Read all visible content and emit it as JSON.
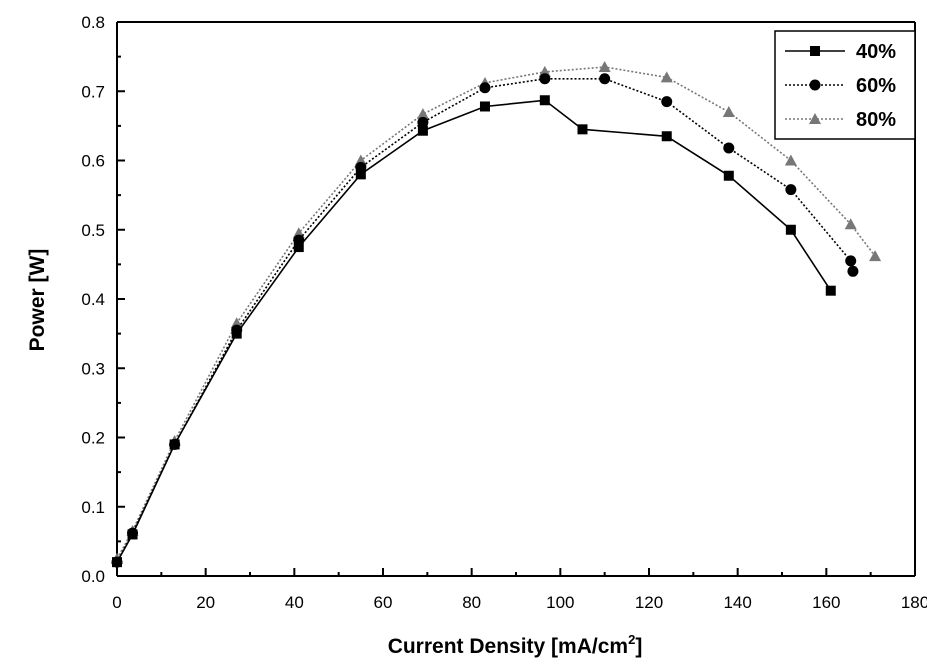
{
  "chart_data": {
    "type": "line",
    "title": "",
    "xlabel": "Current Density [mA/cm",
    "xlabel_superscript": "2",
    "xlabel_suffix": "]",
    "ylabel": "Power [W]",
    "xlim": [
      0,
      180
    ],
    "ylim": [
      0.0,
      0.8
    ],
    "x_ticks": [
      "0",
      "20",
      "40",
      "60",
      "80",
      "100",
      "120",
      "140",
      "160",
      "180"
    ],
    "y_ticks": [
      "0.0",
      "0.1",
      "0.2",
      "0.3",
      "0.4",
      "0.5",
      "0.6",
      "0.7",
      "0.8"
    ],
    "grid": false,
    "legend_position": "top-right",
    "series": [
      {
        "name": "40%",
        "marker": "square",
        "line_style": "solid",
        "color": "#000000",
        "points": [
          [
            0,
            0.02
          ],
          [
            3.5,
            0.06
          ],
          [
            13,
            0.19
          ],
          [
            27,
            0.35
          ],
          [
            41,
            0.475
          ],
          [
            55,
            0.58
          ],
          [
            69,
            0.643
          ],
          [
            83,
            0.678
          ],
          [
            96.5,
            0.687
          ],
          [
            105,
            0.645
          ],
          [
            124,
            0.635
          ],
          [
            138,
            0.578
          ],
          [
            152,
            0.5
          ],
          [
            161,
            0.412
          ]
        ]
      },
      {
        "name": "60%",
        "marker": "circle",
        "line_style": "dotted",
        "color": "#000000",
        "points": [
          [
            0,
            0.02
          ],
          [
            3.5,
            0.062
          ],
          [
            13,
            0.19
          ],
          [
            27,
            0.355
          ],
          [
            41,
            0.485
          ],
          [
            55,
            0.59
          ],
          [
            69,
            0.655
          ],
          [
            83,
            0.705
          ],
          [
            96.5,
            0.718
          ],
          [
            110,
            0.718
          ],
          [
            124,
            0.685
          ],
          [
            138,
            0.618
          ],
          [
            152,
            0.558
          ],
          [
            165.5,
            0.455
          ],
          [
            166,
            0.44
          ]
        ]
      },
      {
        "name": "80%",
        "marker": "triangle",
        "line_style": "dotted",
        "color": "#777777",
        "points": [
          [
            0,
            0.025
          ],
          [
            3.5,
            0.065
          ],
          [
            13,
            0.195
          ],
          [
            27,
            0.365
          ],
          [
            41,
            0.495
          ],
          [
            55,
            0.6
          ],
          [
            69,
            0.667
          ],
          [
            83,
            0.712
          ],
          [
            96.5,
            0.728
          ],
          [
            110,
            0.735
          ],
          [
            124,
            0.72
          ],
          [
            138,
            0.67
          ],
          [
            152,
            0.6
          ],
          [
            165.5,
            0.508
          ],
          [
            171,
            0.462
          ]
        ]
      }
    ]
  }
}
